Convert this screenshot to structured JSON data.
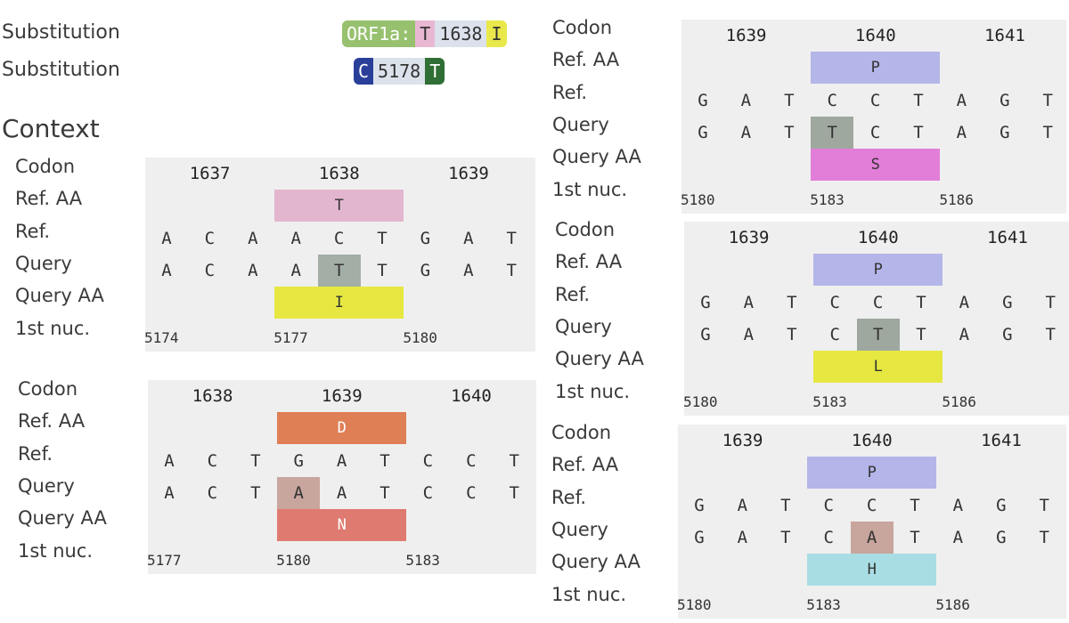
{
  "substitution_rows": [
    {
      "label": "Substitution",
      "pill": [
        {
          "text": "ORF1a:",
          "bg": "#97c16e",
          "fg": "#ffffff"
        },
        {
          "text": "T",
          "bg": "#e8b8d2",
          "fg": "#333333"
        },
        {
          "text": "1638",
          "bg": "#dce2ec",
          "fg": "#333333"
        },
        {
          "text": "I",
          "bg": "#e9e84a",
          "fg": "#333333"
        }
      ]
    },
    {
      "label": "Substitution",
      "pill": [
        {
          "text": "C",
          "bg": "#2a3f9a",
          "fg": "#ffffff"
        },
        {
          "text": "5178",
          "bg": "#dce2ec",
          "fg": "#333333"
        },
        {
          "text": "T",
          "bg": "#2f6e34",
          "fg": "#ffffff"
        }
      ]
    }
  ],
  "context_title": "Context",
  "row_labels": [
    "Codon",
    "Ref. AA",
    "Ref.",
    "Query",
    "Query AA",
    "1st nuc."
  ],
  "panels": [
    {
      "codons": [
        "1637",
        "1638",
        "1639"
      ],
      "ref_aa": {
        "text": "T",
        "color": "#e3b6cf"
      },
      "ref": [
        "A",
        "C",
        "A",
        "A",
        "C",
        "T",
        "G",
        "A",
        "T"
      ],
      "query": [
        "A",
        "C",
        "A",
        "A",
        "T",
        "T",
        "G",
        "A",
        "T"
      ],
      "highlight_index": 4,
      "highlight_color": "#a3aea6",
      "query_aa": {
        "text": "I",
        "color": "#e6e841"
      },
      "positions": [
        "5174",
        "5177",
        "5180"
      ]
    },
    {
      "codons": [
        "1638",
        "1639",
        "1640"
      ],
      "ref_aa": {
        "text": "D",
        "color": "#df7f56",
        "fg": "#ffffff"
      },
      "ref": [
        "A",
        "C",
        "T",
        "G",
        "A",
        "T",
        "C",
        "C",
        "T"
      ],
      "query": [
        "A",
        "C",
        "T",
        "A",
        "A",
        "T",
        "C",
        "C",
        "T"
      ],
      "highlight_index": 3,
      "highlight_color": "#c8a59d",
      "query_aa": {
        "text": "N",
        "color": "#df7a70",
        "fg": "#ffffff"
      },
      "positions": [
        "5177",
        "5180",
        "5183"
      ]
    },
    {
      "codons": [
        "1639",
        "1640",
        "1641"
      ],
      "ref_aa": {
        "text": "P",
        "color": "#b4b5e8"
      },
      "ref": [
        "G",
        "A",
        "T",
        "C",
        "C",
        "T",
        "A",
        "G",
        "T"
      ],
      "query": [
        "G",
        "A",
        "T",
        "T",
        "C",
        "T",
        "A",
        "G",
        "T"
      ],
      "highlight_index": 3,
      "highlight_color": "#9fa89f",
      "query_aa": {
        "text": "S",
        "color": "#e27ed8"
      },
      "positions": [
        "5180",
        "5183",
        "5186"
      ]
    },
    {
      "codons": [
        "1639",
        "1640",
        "1641"
      ],
      "ref_aa": {
        "text": "P",
        "color": "#b4b5e8"
      },
      "ref": [
        "G",
        "A",
        "T",
        "C",
        "C",
        "T",
        "A",
        "G",
        "T"
      ],
      "query": [
        "G",
        "A",
        "T",
        "C",
        "T",
        "T",
        "A",
        "G",
        "T"
      ],
      "highlight_index": 4,
      "highlight_color": "#9fa89f",
      "query_aa": {
        "text": "L",
        "color": "#e6e841"
      },
      "positions": [
        "5180",
        "5183",
        "5186"
      ]
    },
    {
      "codons": [
        "1639",
        "1640",
        "1641"
      ],
      "ref_aa": {
        "text": "P",
        "color": "#b4b5e8"
      },
      "ref": [
        "G",
        "A",
        "T",
        "C",
        "C",
        "T",
        "A",
        "G",
        "T"
      ],
      "query": [
        "G",
        "A",
        "T",
        "C",
        "A",
        "T",
        "A",
        "G",
        "T"
      ],
      "highlight_index": 4,
      "highlight_color": "#c8a59d",
      "query_aa": {
        "text": "H",
        "color": "#a9dde4"
      },
      "positions": [
        "5180",
        "5183",
        "5186"
      ]
    }
  ]
}
